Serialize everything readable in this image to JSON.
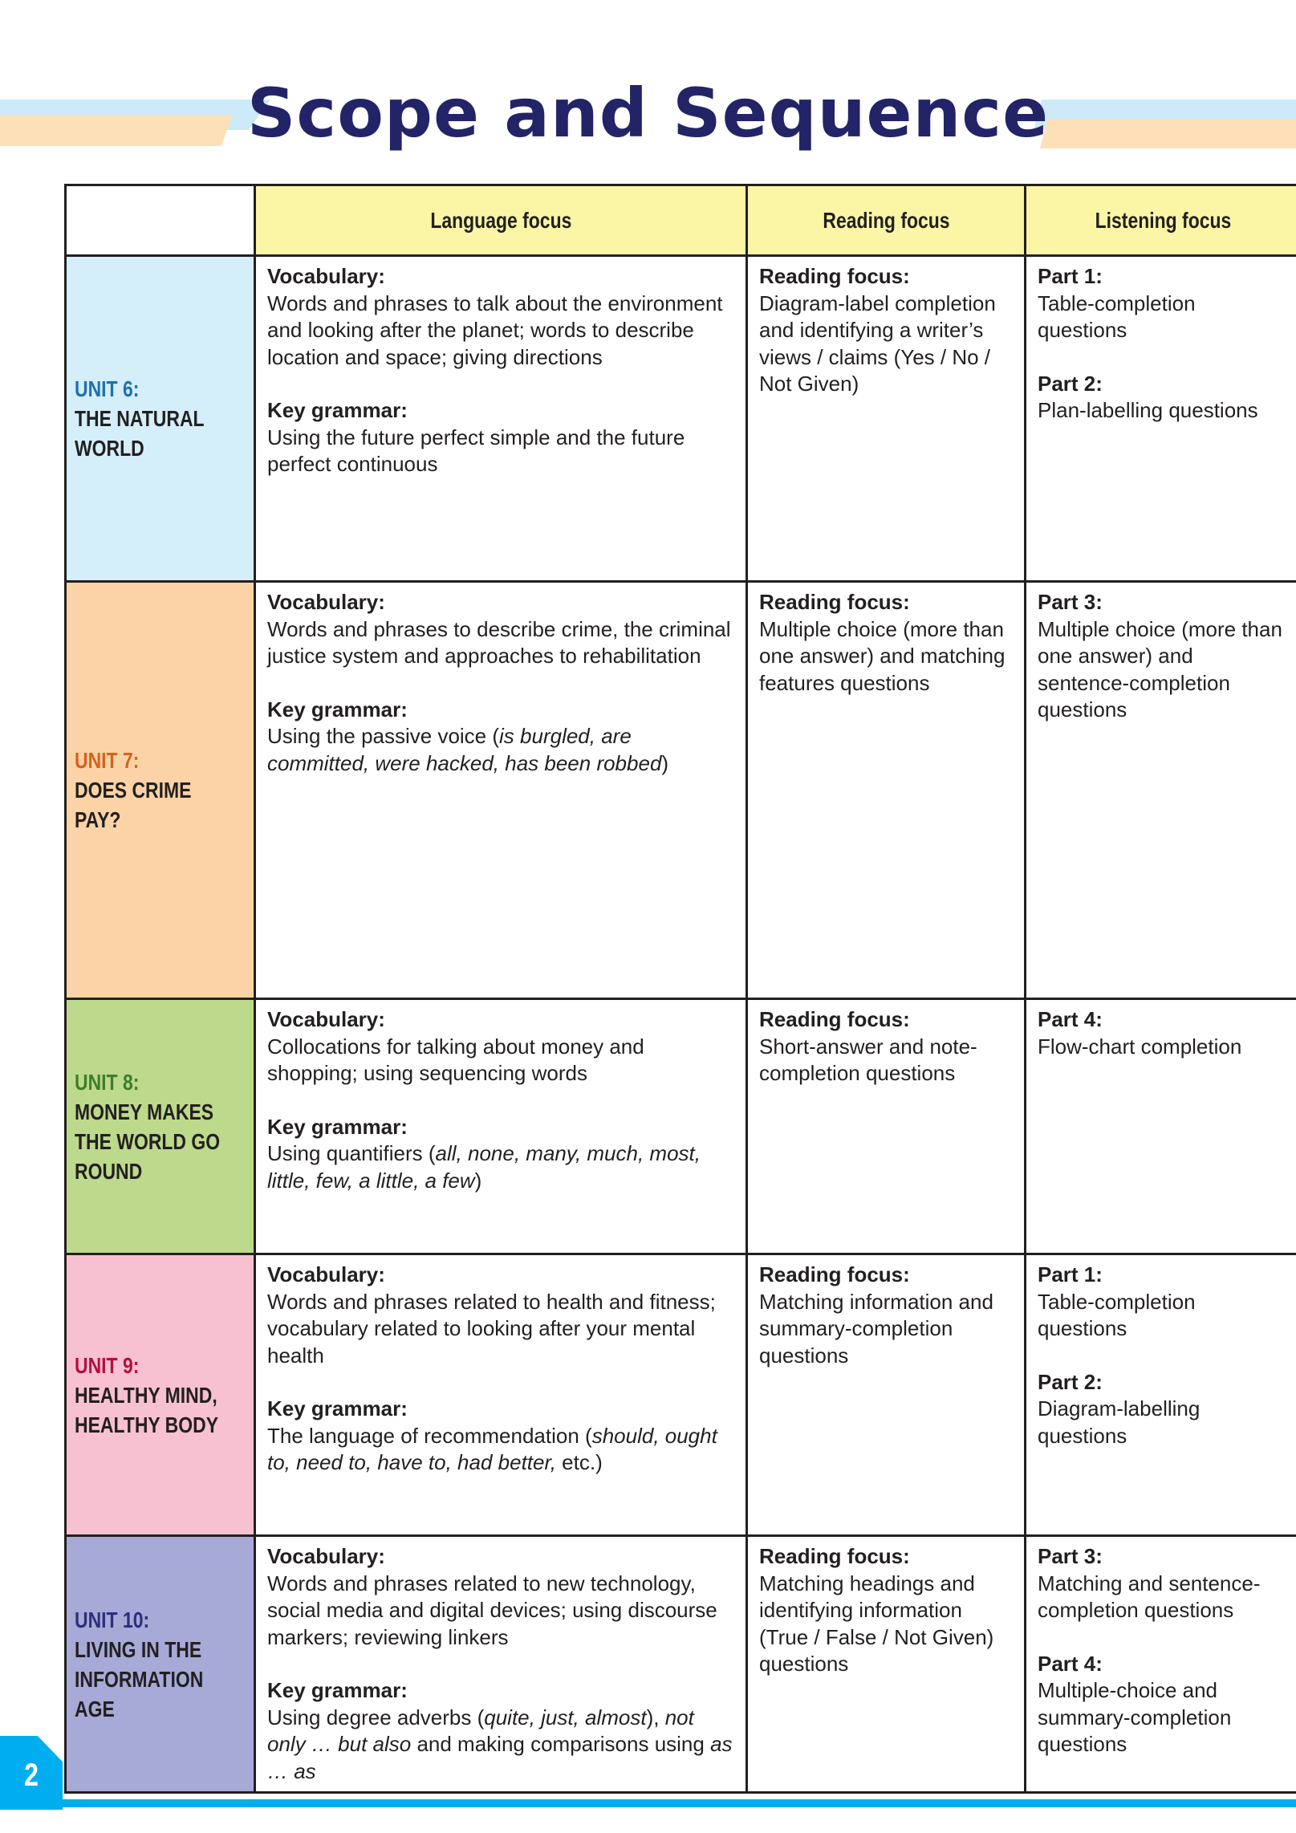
{
  "title": "Scope and Sequence",
  "page_number": "2",
  "colors": {
    "title": "#232467",
    "header_bg": "#faf6a6",
    "accent": "#00aeef"
  },
  "headers": [
    "",
    "Language focus",
    "Reading focus",
    "Listening focus"
  ],
  "rows": [
    {
      "unit_label": "UNIT 6:",
      "unit_title_lines": [
        "THE NATURAL",
        "WORLD"
      ],
      "bg": "#d4eefa",
      "label_color": "#1f6fae",
      "vocab_label": "Vocabulary:",
      "vocab": "Words and phrases to talk about the environment and looking after the planet; words to describe location and space; giving directions",
      "grammar_label": "Key grammar:",
      "grammar": [
        {
          "t": "Using the future perfect simple and the future perfect continuous"
        }
      ],
      "reading_label": "Reading focus:",
      "reading": "Diagram-label completion and identifying a writer’s views / claims (Yes / No / Not Given)",
      "listening": [
        {
          "label": "Part 1:",
          "text": "Table-completion questions"
        },
        {
          "label": "Part 2:",
          "text": "Plan-labelling questions"
        }
      ]
    },
    {
      "unit_label": "UNIT 7:",
      "unit_title_lines": [
        "DOES CRIME",
        "PAY?"
      ],
      "bg": "#fcd3a6",
      "label_color": "#d4621e",
      "vocab_label": "Vocabulary:",
      "vocab": "Words and phrases to describe crime, the criminal justice system and approaches to rehabilitation",
      "grammar_label": "Key grammar:",
      "grammar": [
        {
          "t": "Using the passive voice ("
        },
        {
          "t": "is burgled, are committed, were hacked, has been robbed",
          "i": true
        },
        {
          "t": ")"
        }
      ],
      "reading_label": "Reading focus:",
      "reading": "Multiple choice (more than one answer) and matching features questions",
      "listening": [
        {
          "label": "Part 3:",
          "text": "Multiple choice (more than one answer) and sentence-completion questions"
        }
      ]
    },
    {
      "unit_label": "UNIT 8:",
      "unit_title_lines": [
        "MONEY MAKES",
        "THE WORLD GO",
        "ROUND"
      ],
      "bg": "#bdd98b",
      "label_color": "#3d7d2c",
      "vocab_label": "Vocabulary:",
      "vocab": "Collocations for talking about money and shopping; using sequencing words",
      "grammar_label": "Key grammar:",
      "grammar": [
        {
          "t": "Using quantifiers ("
        },
        {
          "t": "all, none, many, much, most, little, few, a little, a few",
          "i": true
        },
        {
          "t": ")"
        }
      ],
      "reading_label": "Reading focus:",
      "reading": "Short-answer and note-completion questions",
      "listening": [
        {
          "label": "Part 4:",
          "text": "Flow-chart completion"
        }
      ]
    },
    {
      "unit_label": "UNIT 9:",
      "unit_title_lines": [
        "HEALTHY MIND,",
        "HEALTHY BODY"
      ],
      "bg": "#f7c1d1",
      "label_color": "#b3103f",
      "vocab_label": "Vocabulary:",
      "vocab": "Words and phrases related to health and fitness; vocabulary related to looking after your mental health",
      "grammar_label": "Key grammar:",
      "grammar": [
        {
          "t": "The language of recommendation ("
        },
        {
          "t": "should, ought to, need to, have to, had better,",
          "i": true
        },
        {
          "t": " etc.)"
        }
      ],
      "reading_label": "Reading focus:",
      "reading": "Matching information and summary-completion questions",
      "listening": [
        {
          "label": "Part 1:",
          "text": "Table-completion questions"
        },
        {
          "label": "Part 2:",
          "text": "Diagram-labelling questions"
        }
      ]
    },
    {
      "unit_label": "UNIT 10:",
      "unit_title_lines": [
        "LIVING IN THE",
        "INFORMATION",
        "AGE"
      ],
      "bg": "#a7a9d7",
      "label_color": "#2b2f7c",
      "vocab_label": "Vocabulary:",
      "vocab": "Words and phrases related to new technology, social media and digital devices; using discourse markers; reviewing linkers",
      "grammar_label": "Key grammar:",
      "grammar": [
        {
          "t": "Using degree adverbs ("
        },
        {
          "t": "quite, just, almost",
          "i": true
        },
        {
          "t": "), "
        },
        {
          "t": "not only … but also",
          "i": true
        },
        {
          "t": " and making comparisons using "
        },
        {
          "t": "as … as",
          "i": true
        }
      ],
      "reading_label": "Reading focus:",
      "reading": "Matching headings and identifying information (True / False / Not Given) questions",
      "listening": [
        {
          "label": "Part 3:",
          "text": "Matching and sentence-completion questions"
        },
        {
          "label": "Part 4:",
          "text": "Multiple-choice and summary-completion questions"
        }
      ]
    }
  ]
}
